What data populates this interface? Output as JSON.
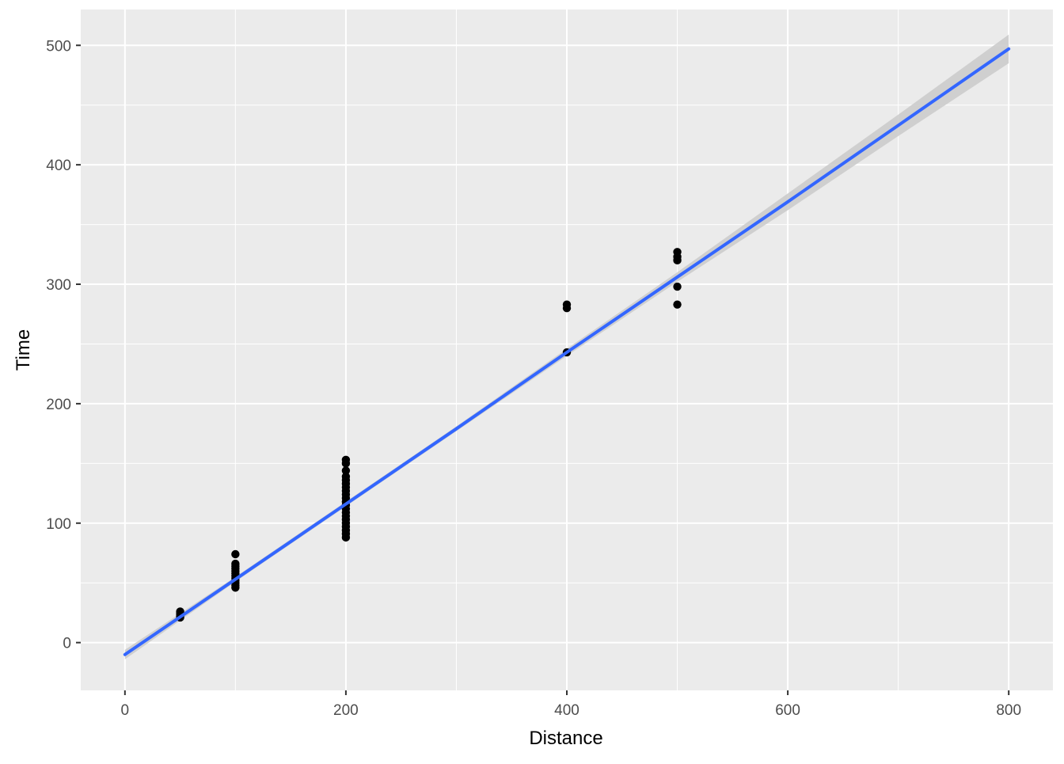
{
  "chart_data": {
    "type": "scatter",
    "xlabel": "Distance",
    "ylabel": "Time",
    "xlim": [
      -40,
      840
    ],
    "ylim": [
      -40,
      530
    ],
    "x_ticks": [
      0,
      200,
      400,
      600,
      800
    ],
    "x_minor_ticks": [
      100,
      300,
      500,
      700
    ],
    "y_ticks": [
      0,
      100,
      200,
      300,
      400,
      500
    ],
    "y_minor_ticks": [
      50,
      150,
      250,
      350,
      450
    ],
    "x_tick_labels": [
      "0",
      "200",
      "400",
      "600",
      "800"
    ],
    "y_tick_labels": [
      "0",
      "100",
      "200",
      "300",
      "400",
      "500"
    ],
    "grid": true,
    "legend": "none",
    "colors": {
      "panel": "#ebebeb",
      "grid": "#ffffff",
      "points": "#000000",
      "fit_line": "#3366ff",
      "confidence_band": "#cccccc"
    },
    "points": [
      {
        "x": 50,
        "y": 21
      },
      {
        "x": 50,
        "y": 22
      },
      {
        "x": 50,
        "y": 23
      },
      {
        "x": 50,
        "y": 24
      },
      {
        "x": 50,
        "y": 25
      },
      {
        "x": 50,
        "y": 26
      },
      {
        "x": 100,
        "y": 46
      },
      {
        "x": 100,
        "y": 48
      },
      {
        "x": 100,
        "y": 50
      },
      {
        "x": 100,
        "y": 52
      },
      {
        "x": 100,
        "y": 54
      },
      {
        "x": 100,
        "y": 56
      },
      {
        "x": 100,
        "y": 58
      },
      {
        "x": 100,
        "y": 60
      },
      {
        "x": 100,
        "y": 62
      },
      {
        "x": 100,
        "y": 64
      },
      {
        "x": 100,
        "y": 66
      },
      {
        "x": 100,
        "y": 74
      },
      {
        "x": 200,
        "y": 88
      },
      {
        "x": 200,
        "y": 91
      },
      {
        "x": 200,
        "y": 94
      },
      {
        "x": 200,
        "y": 97
      },
      {
        "x": 200,
        "y": 100
      },
      {
        "x": 200,
        "y": 103
      },
      {
        "x": 200,
        "y": 106
      },
      {
        "x": 200,
        "y": 109
      },
      {
        "x": 200,
        "y": 112
      },
      {
        "x": 200,
        "y": 115
      },
      {
        "x": 200,
        "y": 118
      },
      {
        "x": 200,
        "y": 121
      },
      {
        "x": 200,
        "y": 124
      },
      {
        "x": 200,
        "y": 127
      },
      {
        "x": 200,
        "y": 130
      },
      {
        "x": 200,
        "y": 133
      },
      {
        "x": 200,
        "y": 136
      },
      {
        "x": 200,
        "y": 139
      },
      {
        "x": 200,
        "y": 144
      },
      {
        "x": 200,
        "y": 150
      },
      {
        "x": 200,
        "y": 153
      },
      {
        "x": 400,
        "y": 243
      },
      {
        "x": 400,
        "y": 280
      },
      {
        "x": 400,
        "y": 283
      },
      {
        "x": 500,
        "y": 283
      },
      {
        "x": 500,
        "y": 298
      },
      {
        "x": 500,
        "y": 320
      },
      {
        "x": 500,
        "y": 323
      },
      {
        "x": 500,
        "y": 327
      }
    ],
    "fit_line": [
      {
        "x": 0,
        "y": -10
      },
      {
        "x": 100,
        "y": 53
      },
      {
        "x": 200,
        "y": 116
      },
      {
        "x": 300,
        "y": 179
      },
      {
        "x": 400,
        "y": 243
      },
      {
        "x": 500,
        "y": 306
      },
      {
        "x": 600,
        "y": 369
      },
      {
        "x": 700,
        "y": 433
      },
      {
        "x": 800,
        "y": 497
      }
    ],
    "confidence_band": [
      {
        "x": 0,
        "upper": -6,
        "lower": -14
      },
      {
        "x": 100,
        "upper": 55,
        "lower": 51
      },
      {
        "x": 200,
        "upper": 118,
        "lower": 114
      },
      {
        "x": 300,
        "upper": 181,
        "lower": 177
      },
      {
        "x": 400,
        "upper": 246,
        "lower": 240
      },
      {
        "x": 500,
        "upper": 310,
        "lower": 302
      },
      {
        "x": 600,
        "upper": 376,
        "lower": 362
      },
      {
        "x": 700,
        "upper": 442,
        "lower": 424
      },
      {
        "x": 800,
        "upper": 509,
        "lower": 485
      }
    ]
  }
}
